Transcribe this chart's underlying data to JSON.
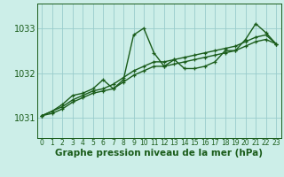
{
  "xlabel": "Graphe pression niveau de la mer (hPa)",
  "bg_color": "#cceee8",
  "grid_color": "#99cccc",
  "line_color": "#1a5c1a",
  "xlim": [
    -0.5,
    23.5
  ],
  "ylim": [
    1030.55,
    1033.55
  ],
  "yticks": [
    1031,
    1032,
    1033
  ],
  "xticks": [
    0,
    1,
    2,
    3,
    4,
    5,
    6,
    7,
    8,
    9,
    10,
    11,
    12,
    13,
    14,
    15,
    16,
    17,
    18,
    19,
    20,
    21,
    22,
    23
  ],
  "s1": [
    1031.05,
    1031.15,
    1031.3,
    1031.5,
    1031.55,
    1031.65,
    1031.85,
    1031.65,
    1031.85,
    1032.85,
    1033.0,
    1032.45,
    1032.15,
    1032.3,
    1032.1,
    1032.1,
    1032.15,
    1032.25,
    1032.5,
    1032.5,
    1032.75,
    1033.1,
    1032.9,
    1032.65
  ],
  "s2": [
    1031.05,
    1031.1,
    1031.2,
    1031.35,
    1031.45,
    1031.55,
    1031.6,
    1031.65,
    1031.8,
    1031.95,
    1032.05,
    1032.15,
    1032.15,
    1032.2,
    1032.25,
    1032.3,
    1032.35,
    1032.4,
    1032.45,
    1032.5,
    1032.6,
    1032.7,
    1032.75,
    1032.65
  ],
  "s3": [
    1031.05,
    1031.15,
    1031.25,
    1031.4,
    1031.5,
    1031.6,
    1031.65,
    1031.75,
    1031.9,
    1032.05,
    1032.15,
    1032.25,
    1032.25,
    1032.3,
    1032.35,
    1032.4,
    1032.45,
    1032.5,
    1032.55,
    1032.6,
    1032.7,
    1032.8,
    1032.85,
    1032.65
  ],
  "marker_size": 3.5,
  "line_width": 1.0,
  "xlabel_fontsize": 7.5,
  "ytick_fontsize": 7.0,
  "xtick_fontsize": 5.5
}
